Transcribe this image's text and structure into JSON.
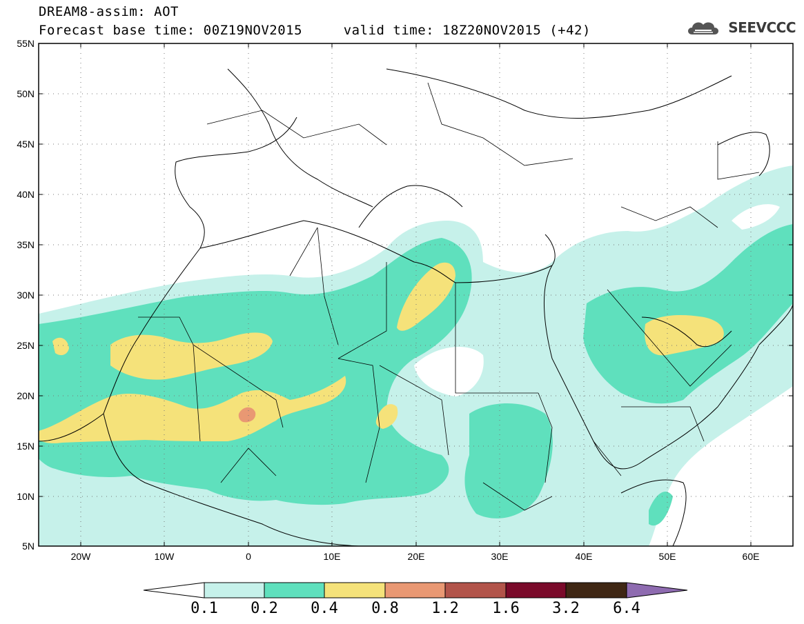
{
  "title_line1": "DREAM8-assim: AOT",
  "title_line2": "Forecast base time: 00Z19NOV2015     valid time: 18Z20NOV2015 (+42)",
  "logo_text": "SEEVCCC",
  "map": {
    "lon_range": [
      -25,
      65
    ],
    "lat_range": [
      5,
      55
    ],
    "lat_ticks": [
      "55N",
      "50N",
      "45N",
      "40N",
      "35N",
      "30N",
      "25N",
      "20N",
      "15N",
      "10N",
      "5N"
    ],
    "lon_ticks": [
      "20W",
      "10W",
      "0",
      "10E",
      "20E",
      "30E",
      "40E",
      "50E",
      "60E"
    ],
    "grid": "dotted"
  },
  "colorbar": {
    "labels": [
      "0.1",
      "0.2",
      "0.4",
      "0.8",
      "1.2",
      "1.6",
      "3.2",
      "6.4"
    ],
    "colors": [
      "#ffffff",
      "#c6f1ea",
      "#5fe0bd",
      "#f5e27a",
      "#e99873",
      "#b2544a",
      "#7a0a2a",
      "#3f2714",
      "#8e6bb0"
    ]
  }
}
